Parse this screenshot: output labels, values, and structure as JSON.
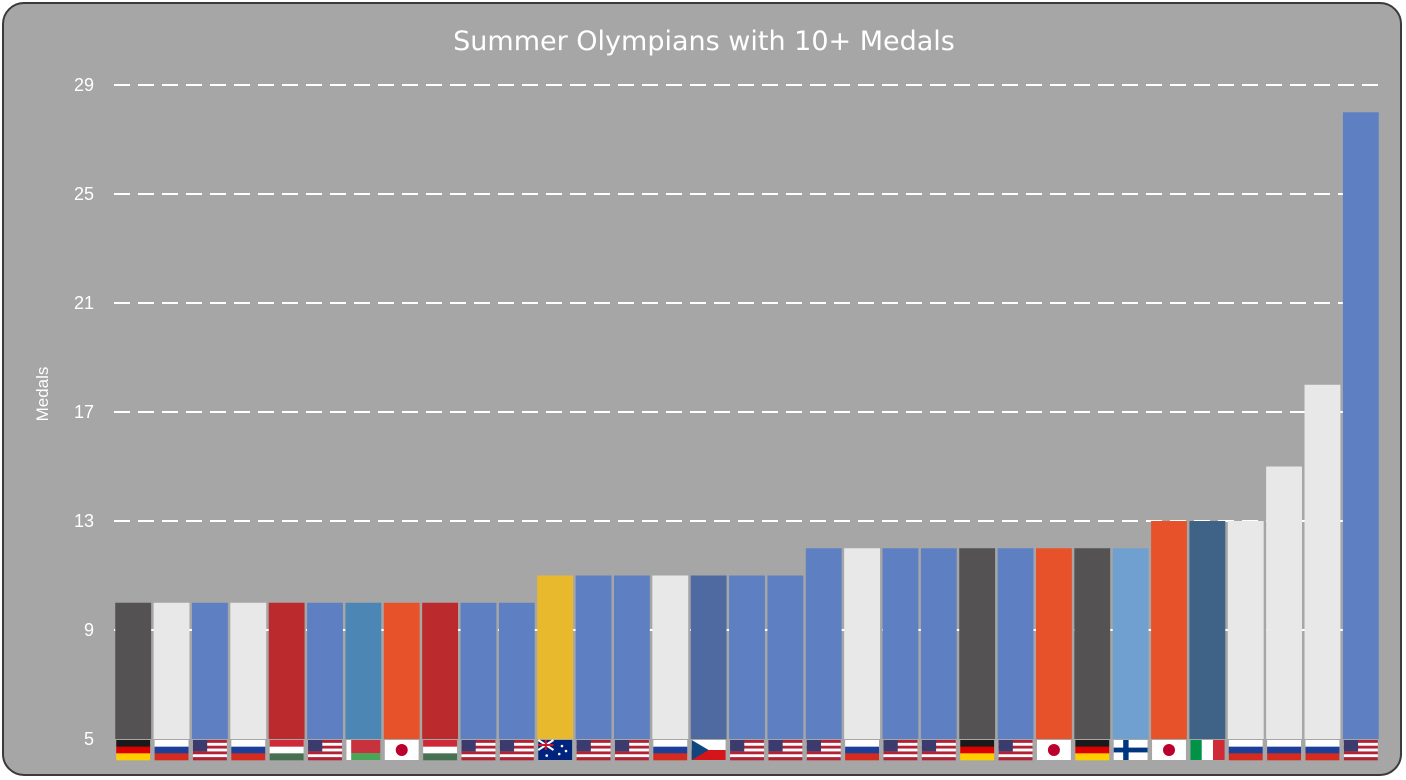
{
  "chart_data": {
    "type": "bar",
    "title": "Summer Olympians with 10+ Medals",
    "xlabel": "",
    "ylabel": "Medals",
    "ylim": [
      5,
      29
    ],
    "yticks": [
      5,
      9,
      13,
      17,
      21,
      25,
      29
    ],
    "grid": "horizontal dashed",
    "legend": "none",
    "categories": [
      "GER",
      "RUS",
      "USA",
      "RUS",
      "HUN",
      "USA",
      "BLR",
      "JPN",
      "HUN",
      "USA",
      "USA",
      "AUS",
      "USA",
      "USA",
      "RUS",
      "CZE",
      "USA",
      "USA",
      "USA",
      "RUS",
      "USA",
      "USA",
      "GER",
      "USA",
      "JPN",
      "GER",
      "FIN",
      "JPN",
      "ITA",
      "RUS",
      "RUS",
      "RUS",
      "USA"
    ],
    "values": [
      10,
      10,
      10,
      10,
      10,
      10,
      10,
      10,
      10,
      10,
      10,
      11,
      11,
      11,
      11,
      11,
      11,
      11,
      12,
      12,
      12,
      12,
      12,
      12,
      12,
      12,
      12,
      13,
      13,
      13,
      15,
      18,
      28
    ],
    "bar_colors": [
      "#545252",
      "#e8e8e8",
      "#5e80c2",
      "#e8e8e8",
      "#bb2a2d",
      "#5e80c2",
      "#4b86b4",
      "#e8522a",
      "#bb2a2d",
      "#5e80c2",
      "#5e80c2",
      "#e9b92d",
      "#5e80c2",
      "#5e80c2",
      "#e8e8e8",
      "#4f6aa0",
      "#5e80c2",
      "#5e80c2",
      "#5e80c2",
      "#e8e8e8",
      "#5e80c2",
      "#5e80c2",
      "#545252",
      "#5e80c2",
      "#e8522a",
      "#545252",
      "#6fa0cf",
      "#e8522a",
      "#3f6386",
      "#e8e8e8",
      "#e8e8e8",
      "#e8e8e8",
      "#5e80c2"
    ]
  }
}
